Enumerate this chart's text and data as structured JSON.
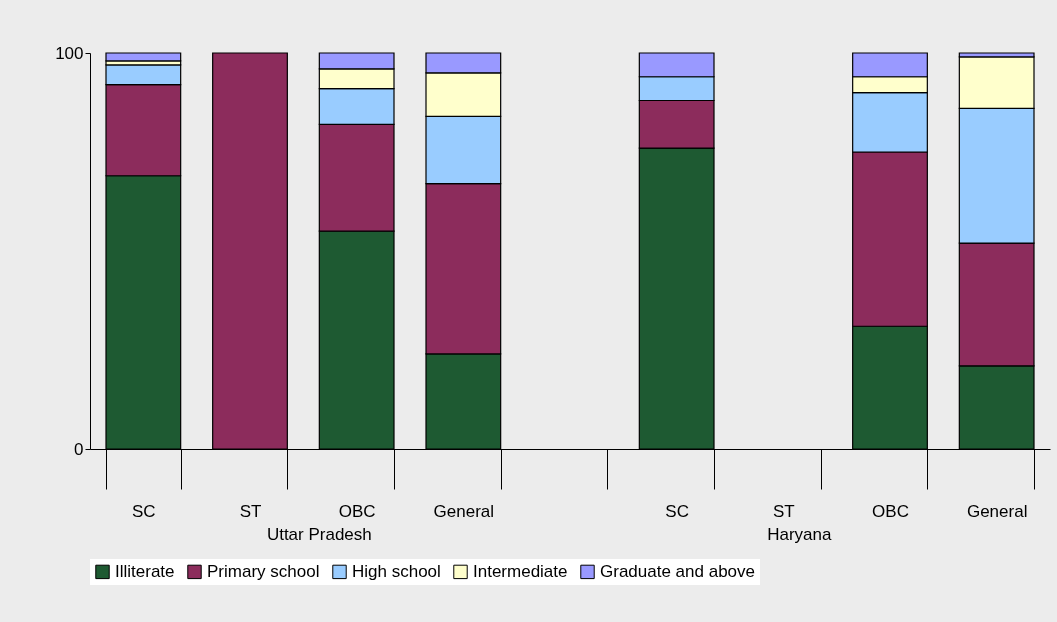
{
  "chart_data": {
    "type": "bar",
    "stacked": true,
    "categories": [
      "SC",
      "ST",
      "OBC",
      "General",
      null,
      "SC",
      "ST",
      "OBC",
      "General"
    ],
    "series": [
      {
        "name": "Illiterate",
        "color": "#1e5a32",
        "values": [
          69,
          null,
          55,
          24,
          null,
          76,
          null,
          31,
          21
        ]
      },
      {
        "name": "Primary school",
        "color": "#8c2c5c",
        "values": [
          23,
          100,
          27,
          43,
          null,
          12,
          null,
          44,
          31
        ]
      },
      {
        "name": "High school",
        "color": "#99ccff",
        "values": [
          5,
          null,
          9,
          17,
          null,
          6,
          null,
          15,
          34
        ]
      },
      {
        "name": "Intermediate",
        "color": "#ffffcc",
        "values": [
          1,
          null,
          5,
          11,
          null,
          null,
          null,
          4,
          13
        ]
      },
      {
        "name": "Graduate and above",
        "color": "#9999ff",
        "values": [
          2,
          null,
          4,
          5,
          null,
          6,
          null,
          6,
          1
        ]
      }
    ],
    "ylim": [
      0,
      100
    ],
    "yticks": [
      0,
      100
    ],
    "grid": false,
    "legend": "bottom",
    "annotations": [
      "Uttar Pradesh",
      "Haryana"
    ]
  }
}
